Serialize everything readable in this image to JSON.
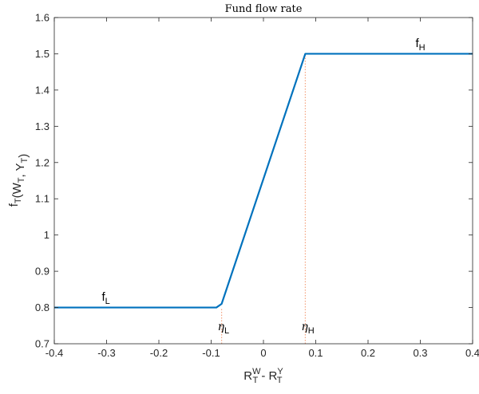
{
  "chart_data": {
    "type": "line",
    "title": "Fund flow rate",
    "xlabel": {
      "main": "R",
      "sup1": "W",
      "sub1": "T",
      "middle": " - R",
      "sup2": "Y",
      "sub2": "T"
    },
    "ylabel": "f_T(W_T, Y_T)",
    "xlim": [
      -0.4,
      0.4
    ],
    "ylim": [
      0.7,
      1.6
    ],
    "xticks": [
      -0.4,
      -0.3,
      -0.2,
      -0.1,
      0,
      0.1,
      0.2,
      0.3,
      0.4
    ],
    "xtick_labels": [
      "-0.4",
      "-0.3",
      "-0.2",
      "-0.1",
      "0",
      "0.1",
      "0.2",
      "0.3",
      "0.4"
    ],
    "yticks": [
      0.7,
      0.8,
      0.9,
      1.0,
      1.1,
      1.2,
      1.3,
      1.4,
      1.5,
      1.6
    ],
    "ytick_labels": [
      "0.7",
      "0.8",
      "0.9",
      "1",
      "1.1",
      "1.2",
      "1.3",
      "1.4",
      "1.5",
      "1.6"
    ],
    "grid": false,
    "series": [
      {
        "color": "#0072bd",
        "x": [
          -0.4,
          -0.09,
          -0.08,
          0.08,
          0.4
        ],
        "y": [
          0.8,
          0.8,
          0.81,
          1.5,
          1.5
        ]
      }
    ],
    "guide_lines": [
      {
        "x": -0.08,
        "y_from": 0.7,
        "y_to": 0.8,
        "color": "#f4a582"
      },
      {
        "x": 0.08,
        "y_from": 0.7,
        "y_to": 1.5,
        "color": "#f4a582"
      }
    ],
    "annotations": [
      {
        "main": "f",
        "sub": "L",
        "x": -0.3,
        "y": 0.81,
        "style": "roman"
      },
      {
        "main": "f",
        "sub": "H",
        "x": 0.3,
        "y": 1.51,
        "style": "roman"
      },
      {
        "main": "η",
        "sub": "L",
        "x": -0.08,
        "y": 0.72,
        "style": "greek"
      },
      {
        "main": "η",
        "sub": "H",
        "x": 0.08,
        "y": 0.72,
        "style": "greek"
      }
    ]
  }
}
